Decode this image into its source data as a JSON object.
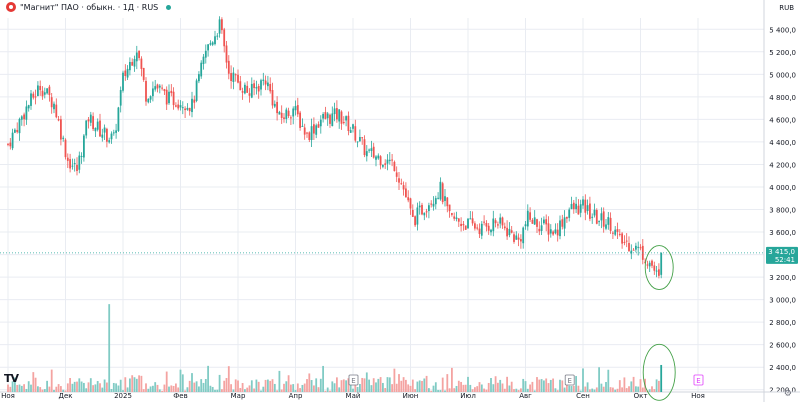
{
  "header": {
    "title": "\"Магнит\" ПАО · обыкн. · 1Д · RUS",
    "currency": "RUB"
  },
  "icons": {
    "logo": "magnit-logo-icon",
    "live": "market-live-dot-icon",
    "brand": "tradingview-logo-icon",
    "settings": "settings-icon"
  },
  "brand_text": "TV",
  "settings_glyph": "⚙",
  "colors": {
    "up": "#26a69a",
    "down": "#ef5350",
    "vol_up": "#80cbc4",
    "vol_down": "#f4a3a1",
    "grid": "#e9ecf2",
    "axis_text": "#131722",
    "price_label_bg": "#26a69a",
    "highlight": "#43a047"
  },
  "chart_data": {
    "type": "candlestick",
    "symbol": "\"Магнит\" ПАО",
    "interval": "1Д",
    "y_ticks": [
      "5 400,0",
      "5 200,0",
      "5 000,0",
      "4 800,0",
      "4 600,0",
      "4 400,0",
      "4 200,0",
      "4 000,0",
      "3 800,0",
      "3 600,0",
      "3 400,0",
      "3 200,0",
      "3 000,0",
      "2 800,0",
      "2 600,0",
      "2 400,0",
      "2 200,0"
    ],
    "y_tick_values": [
      5400,
      5200,
      5000,
      4800,
      4600,
      4400,
      4200,
      4000,
      3800,
      3600,
      3400,
      3200,
      3000,
      2800,
      2600,
      2400,
      2200
    ],
    "price_range": [
      2180,
      5500
    ],
    "x_labels": [
      "Ноя",
      "Дек",
      "2025",
      "Фев",
      "Мар",
      "Апр",
      "Май",
      "Июн",
      "Июл",
      "Авг",
      "Сен",
      "Окт",
      "Ноя"
    ],
    "x_label_days": [
      0,
      25,
      50,
      75,
      100,
      125,
      150,
      175,
      200,
      225,
      250,
      275,
      300
    ],
    "day_count": 315,
    "last_price_label": "3 415,0",
    "countdown_label": "52:41",
    "last_price": 3415,
    "events": [
      {
        "day": 150,
        "label": "E",
        "color": "#787b86"
      },
      {
        "day": 244,
        "label": "E",
        "color": "#787b86"
      },
      {
        "day": 300,
        "label": "E",
        "color": "#e040fb"
      }
    ],
    "close_path": [
      [
        0,
        4380
      ],
      [
        8,
        4700
      ],
      [
        14,
        4900
      ],
      [
        20,
        4740
      ],
      [
        26,
        4240
      ],
      [
        30,
        4150
      ],
      [
        35,
        4620
      ],
      [
        40,
        4500
      ],
      [
        46,
        4420
      ],
      [
        50,
        4960
      ],
      [
        56,
        5240
      ],
      [
        60,
        4820
      ],
      [
        64,
        4900
      ],
      [
        70,
        4780
      ],
      [
        76,
        4760
      ],
      [
        80,
        4720
      ],
      [
        86,
        5200
      ],
      [
        92,
        5440
      ],
      [
        96,
        5020
      ],
      [
        100,
        4930
      ],
      [
        105,
        4830
      ],
      [
        112,
        4960
      ],
      [
        118,
        4600
      ],
      [
        124,
        4700
      ],
      [
        130,
        4460
      ],
      [
        136,
        4600
      ],
      [
        144,
        4640
      ],
      [
        150,
        4500
      ],
      [
        156,
        4300
      ],
      [
        162,
        4260
      ],
      [
        168,
        4200
      ],
      [
        172,
        3980
      ],
      [
        176,
        3700
      ],
      [
        182,
        3850
      ],
      [
        188,
        3980
      ],
      [
        192,
        3720
      ],
      [
        198,
        3680
      ],
      [
        206,
        3630
      ],
      [
        212,
        3690
      ],
      [
        218,
        3600
      ],
      [
        222,
        3520
      ],
      [
        226,
        3720
      ],
      [
        232,
        3660
      ],
      [
        238,
        3600
      ],
      [
        244,
        3800
      ],
      [
        250,
        3820
      ],
      [
        256,
        3720
      ],
      [
        262,
        3680
      ],
      [
        266,
        3520
      ],
      [
        272,
        3480
      ],
      [
        276,
        3410
      ],
      [
        280,
        3300
      ],
      [
        283,
        3170
      ]
    ],
    "last_candle": {
      "open": 3220,
      "close": 3415,
      "high": 3420,
      "low": 3190
    },
    "volume": {
      "baseline_price": 2180,
      "spikes": [
        {
          "day": 44,
          "top_price": 2960,
          "dir": "down"
        },
        {
          "day": 284,
          "top_price": 2420,
          "dir": "up"
        }
      ],
      "typical_top_range": [
        2190,
        2330
      ]
    },
    "annotations": [
      {
        "type": "ellipse",
        "target": "last_candle"
      },
      {
        "type": "ellipse",
        "target": "last_volume"
      }
    ]
  }
}
